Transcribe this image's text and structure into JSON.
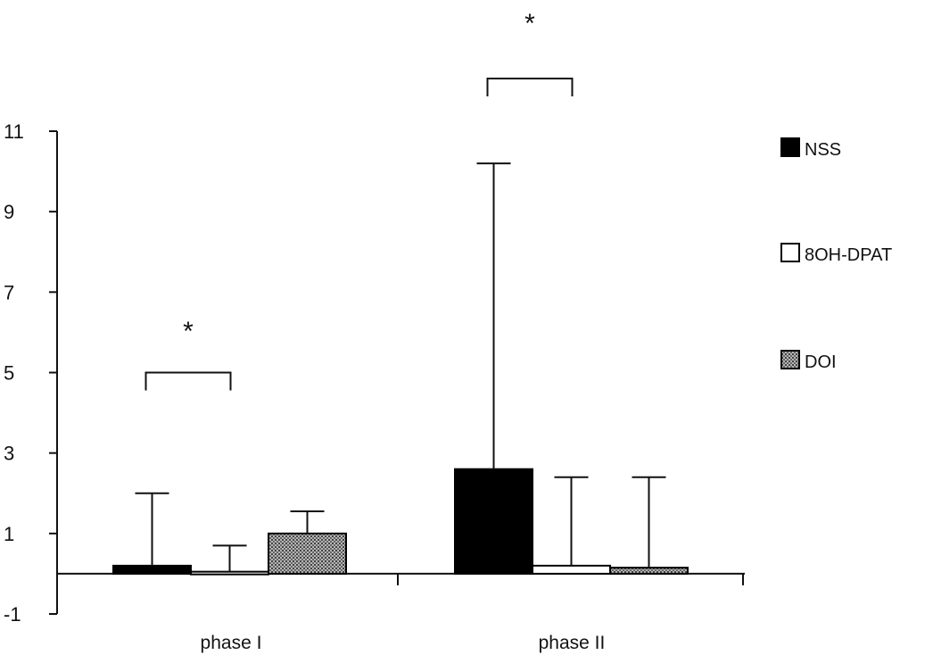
{
  "chart_data": {
    "type": "bar",
    "categories": [
      "phase I",
      "phase II"
    ],
    "series": [
      {
        "name": "NSS",
        "values": [
          0.2,
          2.6
        ],
        "error_upper": [
          2.0,
          10.2
        ],
        "fill": "#000000"
      },
      {
        "name": "8OH-DPAT",
        "values": [
          0.05,
          0.2
        ],
        "error_upper": [
          0.7,
          2.4
        ],
        "fill": "#ffffff"
      },
      {
        "name": "DOI",
        "values": [
          1.0,
          0.15
        ],
        "error_upper": [
          1.55,
          2.4
        ],
        "fill": "#8a8a8a"
      }
    ],
    "ylim": [
      -1,
      11
    ],
    "yticks": [
      -1,
      1,
      3,
      5,
      7,
      9,
      11
    ],
    "significance": [
      {
        "label": "*",
        "category_index": 0,
        "between": [
          0,
          1
        ],
        "bracket_y": 5.0
      },
      {
        "label": "*",
        "category_index": 1,
        "between": [
          0,
          1
        ],
        "bracket_y": 12.2
      }
    ],
    "legend_position": "right",
    "grid": false
  }
}
